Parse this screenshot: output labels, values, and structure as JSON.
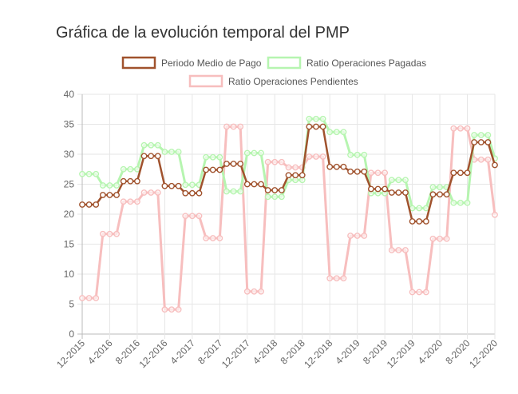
{
  "page": {
    "title": "Gráfica de la evolución temporal del PMP"
  },
  "chart_data": {
    "type": "line",
    "title": "Gráfica de la evolución temporal del PMP",
    "xlabel": "",
    "ylabel": "",
    "ylim": [
      0,
      40
    ],
    "yticks": [
      0,
      5,
      10,
      15,
      20,
      25,
      30,
      35,
      40
    ],
    "grid": true,
    "legend_position": "top-center",
    "x_tick_labels": [
      "12-2015",
      "4-2016",
      "8-2016",
      "12-2016",
      "4-2017",
      "8-2017",
      "12-2017",
      "4-2018",
      "8-2018",
      "12-2018",
      "4-2019",
      "8-2019",
      "12-2019",
      "4-2020",
      "8-2020",
      "12-2020"
    ],
    "x_tick_every": 4,
    "series": [
      {
        "name": "Periodo Medio de Pago",
        "color": "#a0522d",
        "values": [
          21.6,
          21.6,
          21.6,
          23.2,
          23.2,
          23.2,
          25.5,
          25.5,
          25.5,
          29.7,
          29.7,
          29.7,
          24.7,
          24.7,
          24.7,
          23.5,
          23.5,
          23.5,
          27.4,
          27.4,
          27.4,
          28.4,
          28.4,
          28.4,
          25.0,
          25.0,
          25.0,
          24.0,
          24.0,
          24.0,
          26.5,
          26.5,
          26.5,
          34.6,
          34.6,
          34.6,
          27.9,
          27.9,
          27.9,
          27.1,
          27.1,
          27.1,
          24.2,
          24.2,
          24.2,
          23.6,
          23.6,
          23.6,
          18.8,
          18.8,
          18.8,
          23.3,
          23.3,
          23.3,
          26.9,
          26.9,
          26.9,
          32.0,
          32.0,
          32.0,
          28.2
        ]
      },
      {
        "name": "Ratio Operaciones Pagadas",
        "color": "#b6f5b0",
        "values": [
          26.7,
          26.7,
          26.7,
          24.8,
          24.8,
          24.8,
          27.5,
          27.5,
          27.5,
          31.5,
          31.5,
          31.5,
          30.4,
          30.4,
          30.4,
          24.9,
          24.9,
          24.9,
          29.5,
          29.5,
          29.5,
          23.8,
          23.8,
          23.8,
          30.2,
          30.2,
          30.2,
          22.9,
          22.9,
          22.9,
          25.7,
          25.7,
          25.7,
          35.9,
          35.9,
          35.9,
          33.7,
          33.7,
          33.7,
          29.9,
          29.9,
          29.9,
          23.5,
          23.5,
          23.5,
          25.7,
          25.7,
          25.7,
          21.0,
          21.0,
          21.0,
          24.5,
          24.5,
          24.5,
          21.9,
          21.9,
          21.9,
          33.2,
          33.2,
          33.2,
          29.3
        ]
      },
      {
        "name": "Ratio Operaciones Pendientes",
        "color": "#f7bebe",
        "values": [
          6.0,
          6.0,
          6.0,
          16.7,
          16.7,
          16.7,
          22.1,
          22.1,
          22.1,
          23.6,
          23.6,
          23.6,
          4.1,
          4.1,
          4.1,
          19.7,
          19.7,
          19.7,
          16.0,
          16.0,
          16.0,
          34.6,
          34.6,
          34.6,
          7.1,
          7.1,
          7.1,
          28.7,
          28.7,
          28.7,
          27.8,
          27.8,
          27.8,
          29.6,
          29.6,
          29.6,
          9.3,
          9.3,
          9.3,
          16.4,
          16.4,
          16.4,
          26.9,
          26.9,
          26.9,
          14.0,
          14.0,
          14.0,
          7.0,
          7.0,
          7.0,
          15.9,
          15.9,
          15.9,
          34.3,
          34.3,
          34.3,
          29.1,
          29.1,
          29.1,
          19.9
        ]
      }
    ]
  }
}
